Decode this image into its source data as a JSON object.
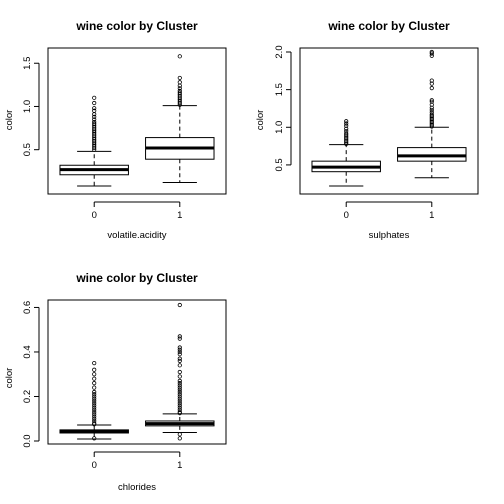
{
  "chart_data": [
    {
      "type": "boxplot",
      "title": "wine color by Cluster",
      "xlabel": "volatile.acidity",
      "ylabel": "color",
      "categories": [
        "0",
        "1"
      ],
      "yticks": [
        "0.5",
        "1.0",
        "1.5"
      ],
      "ylim": [
        0.08,
        1.63
      ],
      "boxes": [
        {
          "category": "0",
          "whisker_low": 0.08,
          "q1": 0.21,
          "median": 0.27,
          "q3": 0.32,
          "whisker_high": 0.48,
          "outliers": [
            0.5,
            0.52,
            0.54,
            0.56,
            0.58,
            0.6,
            0.62,
            0.64,
            0.66,
            0.68,
            0.7,
            0.72,
            0.74,
            0.76,
            0.78,
            0.8,
            0.82,
            0.85,
            0.88,
            0.91,
            0.95,
            0.98,
            1.04,
            1.1
          ]
        },
        {
          "category": "1",
          "whisker_low": 0.12,
          "q1": 0.39,
          "median": 0.52,
          "q3": 0.64,
          "whisker_high": 1.01,
          "outliers": [
            1.02,
            1.04,
            1.06,
            1.08,
            1.1,
            1.12,
            1.14,
            1.16,
            1.18,
            1.21,
            1.24,
            1.28,
            1.33,
            1.58
          ]
        }
      ]
    },
    {
      "type": "boxplot",
      "title": "wine color by Cluster",
      "xlabel": "sulphates",
      "ylabel": "color",
      "categories": [
        "0",
        "1"
      ],
      "yticks": [
        "0.5",
        "1.0",
        "1.5",
        "2.0"
      ],
      "ylim": [
        0.22,
        2.0
      ],
      "boxes": [
        {
          "category": "0",
          "whisker_low": 0.22,
          "q1": 0.41,
          "median": 0.47,
          "q3": 0.55,
          "whisker_high": 0.77,
          "outliers": [
            0.78,
            0.8,
            0.82,
            0.84,
            0.86,
            0.88,
            0.9,
            0.92,
            0.95,
            0.98,
            1.02,
            1.05,
            1.08
          ]
        },
        {
          "category": "1",
          "whisker_low": 0.33,
          "q1": 0.55,
          "median": 0.62,
          "q3": 0.73,
          "whisker_high": 1.0,
          "outliers": [
            1.01,
            1.03,
            1.05,
            1.07,
            1.09,
            1.11,
            1.13,
            1.15,
            1.17,
            1.2,
            1.23,
            1.26,
            1.3,
            1.34,
            1.36,
            1.52,
            1.58,
            1.62,
            1.95,
            1.98,
            2.0
          ]
        }
      ]
    },
    {
      "type": "boxplot",
      "title": "wine color by Cluster",
      "xlabel": "chlorides",
      "ylabel": "color",
      "categories": [
        "0",
        "1"
      ],
      "yticks": [
        "0.0",
        "0.2",
        "0.4",
        "0.6"
      ],
      "ylim": [
        0.009,
        0.611
      ],
      "boxes": [
        {
          "category": "0",
          "whisker_low": 0.009,
          "q1": 0.036,
          "median": 0.043,
          "q3": 0.05,
          "whisker_high": 0.072,
          "outliers": [
            0.075,
            0.08,
            0.09,
            0.1,
            0.11,
            0.12,
            0.13,
            0.14,
            0.15,
            0.16,
            0.17,
            0.18,
            0.19,
            0.2,
            0.21,
            0.22,
            0.24,
            0.26,
            0.28,
            0.3,
            0.32,
            0.35,
            0.012
          ]
        },
        {
          "category": "1",
          "whisker_low": 0.038,
          "q1": 0.068,
          "median": 0.078,
          "q3": 0.09,
          "whisker_high": 0.122,
          "outliers": [
            0.125,
            0.13,
            0.14,
            0.15,
            0.16,
            0.17,
            0.18,
            0.19,
            0.2,
            0.21,
            0.22,
            0.23,
            0.24,
            0.25,
            0.26,
            0.27,
            0.29,
            0.31,
            0.34,
            0.36,
            0.37,
            0.39,
            0.4,
            0.41,
            0.42,
            0.46,
            0.47,
            0.611,
            0.012,
            0.03
          ]
        }
      ]
    }
  ]
}
